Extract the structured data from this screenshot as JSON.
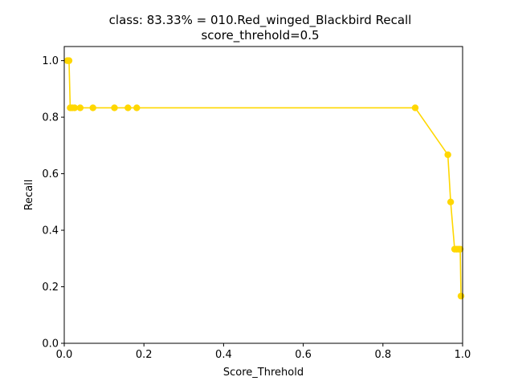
{
  "chart_data": {
    "type": "line",
    "title": "class: 83.33% = 010.Red_winged_Blackbird Recall",
    "subtitle": "score_threhold=0.5",
    "xlabel": "Score_Threhold",
    "ylabel": "Recall",
    "xlim": [
      0.0,
      1.0
    ],
    "ylim": [
      0.0,
      1.05
    ],
    "xticks": [
      "0.0",
      "0.2",
      "0.4",
      "0.6",
      "0.8",
      "1.0"
    ],
    "yticks": [
      "0.0",
      "0.2",
      "0.4",
      "0.6",
      "0.8",
      "1.0"
    ],
    "grid": false,
    "color": "#FFD700",
    "series": [
      {
        "x": [
          0.008,
          0.012,
          0.015,
          0.02,
          0.026,
          0.04,
          0.072,
          0.126,
          0.16,
          0.182,
          0.881,
          0.963,
          0.97,
          0.98,
          0.985,
          0.99,
          0.994,
          0.996
        ],
        "y": [
          1.0,
          1.0,
          0.833,
          0.833,
          0.833,
          0.833,
          0.833,
          0.833,
          0.833,
          0.833,
          0.833,
          0.667,
          0.5,
          0.333,
          0.333,
          0.333,
          0.333,
          0.167
        ]
      }
    ]
  }
}
